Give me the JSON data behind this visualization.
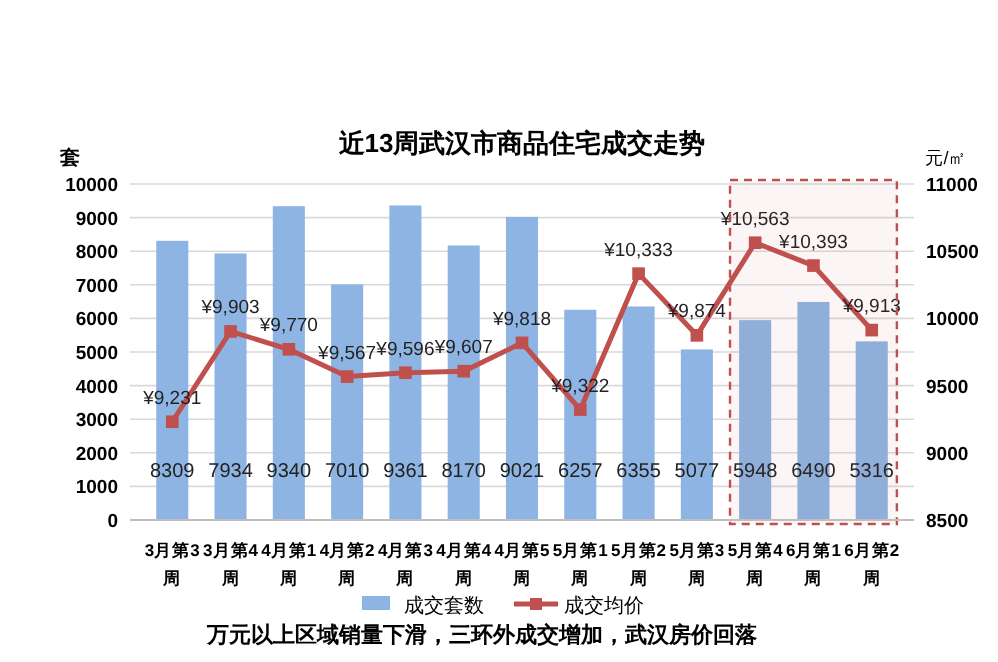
{
  "chart_data": {
    "type": "bar",
    "title": "近13周武汉市商品住宅成交走势",
    "ylabel": "套",
    "y2label": "元/㎡",
    "categories": [
      "3月第3周",
      "3月第4周",
      "4月第1周",
      "4月第2周",
      "4月第3周",
      "4月第4周",
      "4月第5周",
      "5月第1周",
      "5月第2周",
      "5月第3周",
      "5月第4周",
      "6月第1周",
      "6月第2周"
    ],
    "series": [
      {
        "name": "成交套数",
        "color": "#8eb4e3",
        "values": [
          8309,
          7934,
          9340,
          7010,
          9361,
          8170,
          9021,
          6257,
          6355,
          5077,
          5948,
          6490,
          5316
        ],
        "data_labels": true
      },
      {
        "name": "成交均价",
        "type": "line",
        "axis": "y2",
        "color": "#c0504d",
        "marker": "square",
        "values": [
          9231,
          9903,
          9770,
          9567,
          9596,
          9607,
          9818,
          9322,
          10333,
          9874,
          10563,
          10393,
          9913
        ],
        "value_labels": [
          "¥9,231",
          "¥9,903",
          "¥9,770",
          "¥9,567",
          "¥9,596",
          "¥9,607",
          "¥9,818",
          "¥9,322",
          "¥10,333",
          "¥9,874",
          "¥10,563",
          "¥10,393",
          "¥9,913"
        ]
      }
    ],
    "ylim": [
      0,
      10000
    ],
    "yticks": [
      0,
      1000,
      2000,
      3000,
      4000,
      5000,
      6000,
      7000,
      8000,
      9000,
      10000
    ],
    "y2lim": [
      8500,
      11000
    ],
    "y2ticks": [
      8500,
      9000,
      9500,
      10000,
      10500,
      11000
    ],
    "grid": "y",
    "legend": "bottom",
    "bands": [
      {
        "axis": "x",
        "from": "5月第4周",
        "to": "6月第2周",
        "color": "#c0504d"
      }
    ],
    "annotations": [
      "万元以上区域销量下滑，三环外成交增加，武汉房价回落"
    ]
  }
}
